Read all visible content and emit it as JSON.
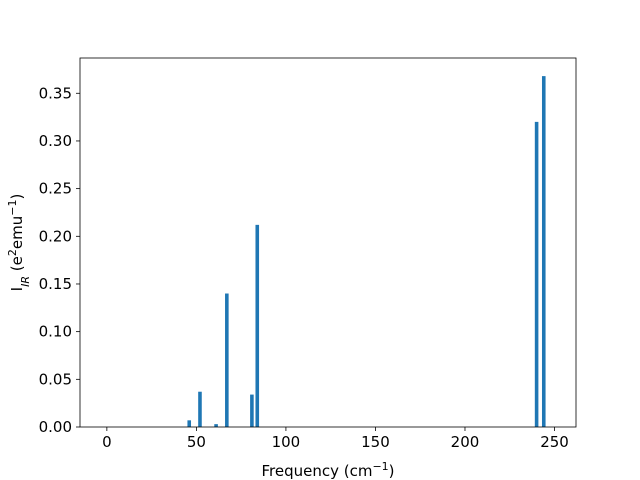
{
  "chart_data": {
    "type": "bar",
    "title": "",
    "xlabel": {
      "main": "Frequency (cm",
      "sup": "−1",
      "tail": ")"
    },
    "ylabel": {
      "main": "I",
      "sub": "IR",
      "mid1": " (e",
      "sup1": "2",
      "mid2": "emu",
      "sup2": "−1",
      "tail": ")"
    },
    "xlim": [
      -15,
      262
    ],
    "ylim": [
      0,
      0.387
    ],
    "xticks": [
      0,
      50,
      100,
      150,
      200,
      250
    ],
    "yticks": [
      0.0,
      0.05,
      0.1,
      0.15,
      0.2,
      0.25,
      0.3,
      0.35
    ],
    "ytick_decimals": 2,
    "grid": false,
    "bar_color": "#1f77b4",
    "bar_width": 2,
    "x": [
      46,
      52,
      61,
      67,
      81,
      84,
      240,
      244
    ],
    "values": [
      0.007,
      0.037,
      0.003,
      0.14,
      0.034,
      0.212,
      0.32,
      0.368
    ]
  }
}
